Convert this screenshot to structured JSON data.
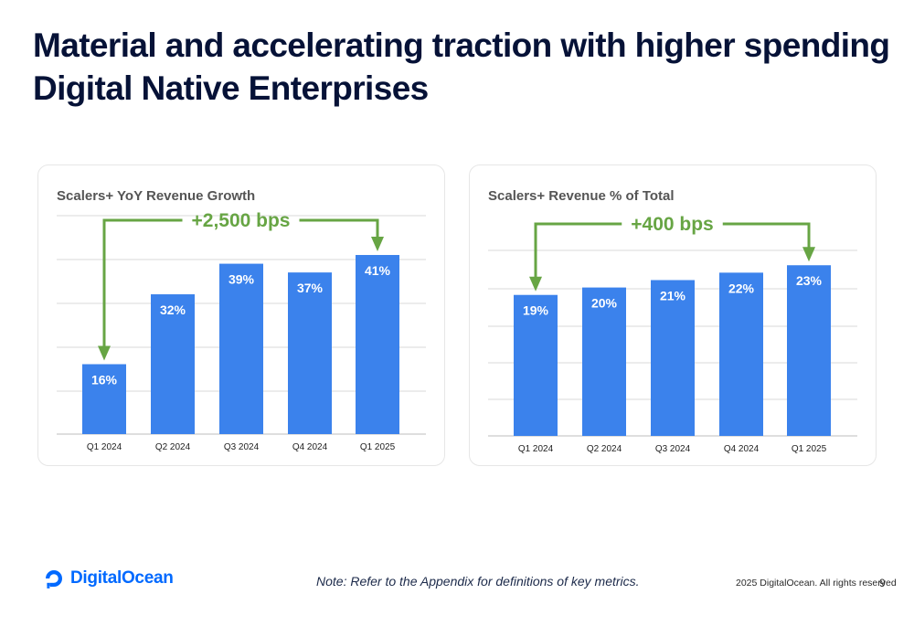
{
  "title": "Material and accelerating traction with higher spending Digital Native Enterprises",
  "colors": {
    "bar": "#3b82ec",
    "accent": "#67a544",
    "grid": "#d9d9d9",
    "brand": "#0069ff"
  },
  "footer": {
    "note": "Note: Refer to the Appendix for definitions of key metrics.",
    "copyright": "2025 DigitalOcean. All rights reserved",
    "page": "9",
    "logo_text": "DigitalOcean",
    "logo_icon": "digitalocean-logo-icon"
  },
  "chart_data": [
    {
      "type": "bar",
      "title": "Scalers+ YoY Revenue Growth",
      "categories": [
        "Q1 2024",
        "Q2 2024",
        "Q3 2024",
        "Q4 2024",
        "Q1 2025"
      ],
      "values": [
        16,
        32,
        39,
        37,
        41
      ],
      "labels": [
        "16%",
        "32%",
        "39%",
        "37%",
        "41%"
      ],
      "ylim": [
        0,
        50
      ],
      "grid": true,
      "annotation": {
        "text": "+2,500 bps",
        "from": "Q1 2024",
        "to": "Q1 2025"
      }
    },
    {
      "type": "bar",
      "title": "Scalers+ Revenue % of Total",
      "categories": [
        "Q1 2024",
        "Q2 2024",
        "Q3 2024",
        "Q4 2024",
        "Q1 2025"
      ],
      "values": [
        19,
        20,
        21,
        22,
        23
      ],
      "labels": [
        "19%",
        "20%",
        "21%",
        "22%",
        "23%"
      ],
      "ylim": [
        0,
        25
      ],
      "grid": true,
      "annotation": {
        "text": "+400 bps",
        "from": "Q1 2024",
        "to": "Q1 2025"
      }
    }
  ]
}
